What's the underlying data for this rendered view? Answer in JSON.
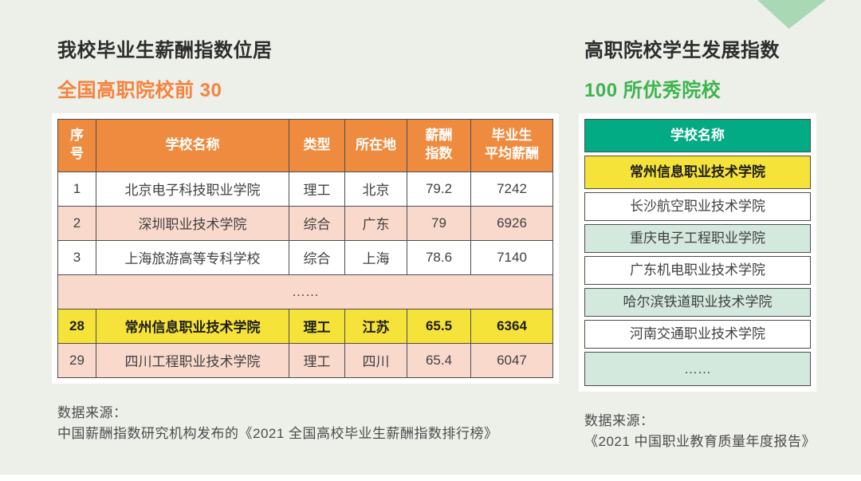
{
  "page": {
    "background_color": "#edefe9",
    "corner_triangle_color": "#a9d8b4"
  },
  "left_section": {
    "title": "我校毕业生薪酬指数位居",
    "subtitle": "全国高职院校前 30",
    "subtitle_color": "#f5823d",
    "table": {
      "header_bg_color": "#ef8b3f",
      "stripe_color": "#fad9cd",
      "highlight_color": "#f6e339",
      "headers": [
        "序\n号",
        "学校名称",
        "类型",
        "所在地",
        "薪酬\n指数",
        "毕业生\n平均薪酬"
      ],
      "rows": [
        {
          "rank": "1",
          "school": "北京电子科技职业学院",
          "type": "理工",
          "location": "北京",
          "salary_index": "79.2",
          "avg_salary": "7242"
        },
        {
          "rank": "2",
          "school": "深圳职业技术学院",
          "type": "综合",
          "location": "广东",
          "salary_index": "79",
          "avg_salary": "6926"
        },
        {
          "rank": "3",
          "school": "上海旅游高等专科学校",
          "type": "综合",
          "location": "上海",
          "salary_index": "78.6",
          "avg_salary": "7140"
        },
        {
          "ellipsis": "……"
        },
        {
          "rank": "28",
          "school": "常州信息职业技术学院",
          "type": "理工",
          "location": "江苏",
          "salary_index": "65.5",
          "avg_salary": "6364",
          "highlight": true
        },
        {
          "rank": "29",
          "school": "四川工程职业技术学院",
          "type": "理工",
          "location": "四川",
          "salary_index": "65.4",
          "avg_salary": "6047"
        }
      ]
    },
    "source_label": "数据来源：",
    "source_text": "中国薪酬指数研究机构发布的《2021 全国高校毕业生薪酬指数排行榜》"
  },
  "right_section": {
    "title": "高职院校学生发展指数",
    "subtitle": "100 所优秀院校",
    "subtitle_color": "#3cb54e",
    "table": {
      "header": "学校名称",
      "header_bg_color": "#02ab83",
      "stripe_color": "#d3e9de",
      "highlight_color": "#f6e339",
      "rows": [
        {
          "school": "常州信息职业技术学院",
          "highlight": true
        },
        {
          "school": "长沙航空职业技术学院"
        },
        {
          "school": "重庆电子工程职业学院"
        },
        {
          "school": "广东机电职业技术学院"
        },
        {
          "school": "哈尔滨铁道职业技术学院"
        },
        {
          "school": "河南交通职业技术学院"
        },
        {
          "school": "……"
        }
      ]
    },
    "source_label": "数据来源：",
    "source_text": "《2021 中国职业教育质量年度报告》"
  }
}
